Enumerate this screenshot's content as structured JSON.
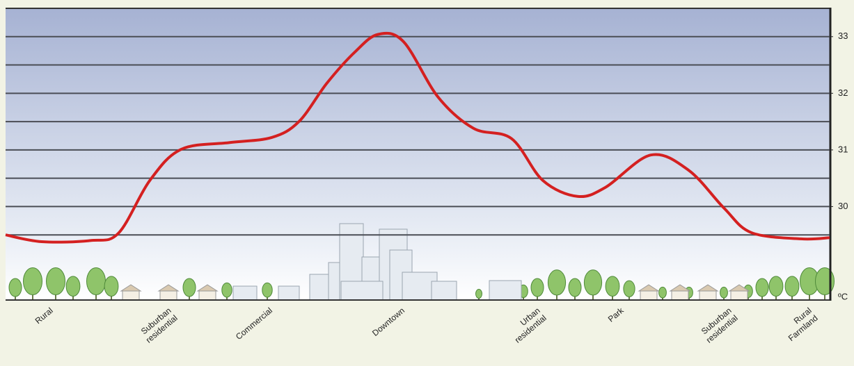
{
  "chart_data": {
    "type": "line",
    "x": [
      0,
      4.4,
      10.3,
      13.7,
      17.5,
      21.3,
      27.2,
      32.3,
      35.6,
      39.0,
      42.4,
      45.2,
      48.3,
      52.5,
      56.8,
      61.4,
      65.2,
      69.4,
      72.8,
      78.3,
      82.9,
      87.2,
      90.5,
      96.5,
      100
    ],
    "series": [
      {
        "color": "#d42020",
        "values": [
          29.5,
          29.38,
          29.4,
          29.53,
          30.46,
          31.01,
          31.13,
          31.22,
          31.5,
          32.18,
          32.73,
          33.04,
          32.91,
          31.93,
          31.38,
          31.2,
          30.46,
          30.18,
          30.34,
          30.91,
          30.64,
          29.97,
          29.54,
          29.43,
          29.45
        ]
      }
    ],
    "xlim": [
      0,
      100
    ],
    "xticks": [
      {
        "value": 5.2,
        "label": "Rural"
      },
      {
        "value": 19.6,
        "label": "Suburban\nresidential"
      },
      {
        "value": 31.8,
        "label": "Commercial"
      },
      {
        "value": 47.9,
        "label": "Downtown"
      },
      {
        "value": 64.4,
        "label": "Urban\nresidential"
      },
      {
        "value": 74.5,
        "label": "Park"
      },
      {
        "value": 87.6,
        "label": "Suburban\nresidential"
      },
      {
        "value": 97.3,
        "label": "Rural\nFarmland"
      }
    ],
    "ylim": [
      28.35,
      33.5
    ],
    "yticks": [
      30,
      31,
      32,
      33
    ],
    "grid_lines": [
      29.5,
      30,
      30.5,
      31,
      31.5,
      32,
      32.5,
      33
    ],
    "y_label": "ºC"
  }
}
